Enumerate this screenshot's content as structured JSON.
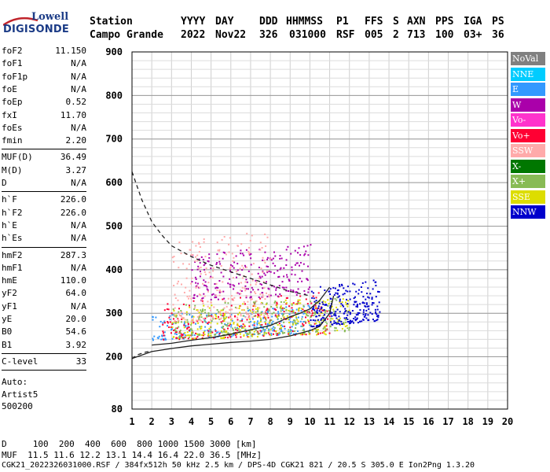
{
  "logo": {
    "line1": "Lowell",
    "line2": "DIGISONDE"
  },
  "header": {
    "labels": [
      {
        "label": "Station",
        "value": "Campo Grande"
      },
      {
        "label": "YYYY",
        "value": "2022"
      },
      {
        "label": "DAY",
        "value": "Nov22"
      },
      {
        "label": "DDD",
        "value": "326"
      },
      {
        "label": "HHMMSS",
        "value": "031000"
      },
      {
        "label": "P1",
        "value": "RSF"
      },
      {
        "label": "FFS",
        "value": "005"
      },
      {
        "label": "S",
        "value": "2"
      },
      {
        "label": "AXN",
        "value": "713"
      },
      {
        "label": "PPS",
        "value": "100"
      },
      {
        "label": "IGA",
        "value": "03+"
      },
      {
        "label": "PS",
        "value": "36"
      }
    ]
  },
  "params": {
    "group1": [
      {
        "label": "foF2",
        "value": "11.150"
      },
      {
        "label": "foF1",
        "value": "N/A"
      },
      {
        "label": "foF1p",
        "value": "N/A"
      },
      {
        "label": "foE",
        "value": "N/A"
      },
      {
        "label": "foEp",
        "value": "0.52"
      },
      {
        "label": "fxI",
        "value": "11.70"
      },
      {
        "label": "foEs",
        "value": "N/A"
      },
      {
        "label": "fmin",
        "value": "2.20"
      }
    ],
    "group2": [
      {
        "label": "MUF(D)",
        "value": "36.49"
      },
      {
        "label": "M(D)",
        "value": "3.27"
      },
      {
        "label": "D",
        "value": "N/A"
      }
    ],
    "group3": [
      {
        "label": "h`F",
        "value": "226.0"
      },
      {
        "label": "h`F2",
        "value": "226.0"
      },
      {
        "label": "h`E",
        "value": "N/A"
      },
      {
        "label": "h`Es",
        "value": "N/A"
      }
    ],
    "group4": [
      {
        "label": "hmF2",
        "value": "287.3"
      },
      {
        "label": "hmF1",
        "value": "N/A"
      },
      {
        "label": "hmE",
        "value": "110.0"
      },
      {
        "label": "yF2",
        "value": "64.0"
      },
      {
        "label": "yF1",
        "value": "N/A"
      },
      {
        "label": "yE",
        "value": "20.0"
      },
      {
        "label": "B0",
        "value": "54.6"
      },
      {
        "label": "B1",
        "value": "3.92"
      }
    ],
    "group5": [
      {
        "label": "C-level",
        "value": "33"
      }
    ],
    "auto": [
      "Auto:",
      "Artist5",
      "500200"
    ]
  },
  "legend": [
    {
      "name": "NoVal",
      "color": "#808080"
    },
    {
      "name": "NNE",
      "color": "#00ccff"
    },
    {
      "name": "E",
      "color": "#3399ff"
    },
    {
      "name": "W",
      "color": "#aa00aa"
    },
    {
      "name": "Vo-",
      "color": "#ff33cc"
    },
    {
      "name": "Vo+",
      "color": "#ff0033"
    },
    {
      "name": "SSW",
      "color": "#ffaaaa"
    },
    {
      "name": "X-",
      "color": "#007700"
    },
    {
      "name": "X+",
      "color": "#88bb55"
    },
    {
      "name": "SSE",
      "color": "#dddd00"
    },
    {
      "name": "NNW",
      "color": "#0000cc"
    }
  ],
  "footer": {
    "line1": "D     100  200  400  600  800 1000 1500 3000 [km]",
    "line2": "MUF  11.5 11.6 12.2 13.1 14.4 16.4 22.0 36.5 [MHz]",
    "line3": "CGK21_2022326031000.RSF / 384fx512h 50 kHz 2.5 km / DPS-4D CGK21 821 / 20.5 S 305.0 E Ion2Png 1.3.20"
  },
  "chart_data": {
    "type": "scatter",
    "xlabel": "",
    "ylabel": "",
    "xlim": [
      1,
      20
    ],
    "ylim": [
      80,
      900
    ],
    "x_ticks": [
      1,
      2,
      3,
      4,
      5,
      6,
      7,
      8,
      9,
      10,
      11,
      12,
      13,
      14,
      15,
      16,
      17,
      18,
      19,
      20
    ],
    "y_ticks": [
      80,
      200,
      300,
      400,
      500,
      600,
      700,
      800,
      900
    ],
    "grid": true,
    "curves": [
      {
        "name": "",
        "style": "dashed",
        "points": [
          [
            1,
            625
          ],
          [
            1.5,
            560
          ],
          [
            2,
            510
          ],
          [
            2.5,
            480
          ],
          [
            3,
            455
          ],
          [
            4,
            430
          ],
          [
            5,
            410
          ],
          [
            6,
            395
          ],
          [
            7,
            380
          ],
          [
            8,
            365
          ],
          [
            9,
            350
          ],
          [
            9.5,
            345
          ],
          [
            10,
            340
          ]
        ]
      },
      {
        "name": "",
        "style": "solid",
        "points": [
          [
            1,
            196
          ],
          [
            2,
            212
          ],
          [
            3,
            219
          ],
          [
            4,
            225
          ],
          [
            5,
            229
          ],
          [
            6,
            233
          ],
          [
            7,
            236
          ],
          [
            8,
            240
          ],
          [
            9,
            248
          ],
          [
            10,
            260
          ],
          [
            10.5,
            270
          ],
          [
            11,
            300
          ],
          [
            11.2,
            340
          ]
        ]
      },
      {
        "name": "",
        "style": "solid",
        "points": [
          [
            2,
            227
          ],
          [
            3,
            231
          ],
          [
            4,
            238
          ],
          [
            5,
            244
          ],
          [
            6,
            252
          ],
          [
            7,
            262
          ],
          [
            8,
            272
          ],
          [
            8.5,
            282
          ],
          [
            9,
            292
          ],
          [
            9.5,
            300
          ],
          [
            10,
            310
          ],
          [
            10.5,
            330
          ],
          [
            11,
            360
          ]
        ]
      },
      {
        "name": "",
        "style": "dashed",
        "points": [
          [
            1,
            196
          ],
          [
            1.3,
            205
          ],
          [
            1.7,
            211
          ],
          [
            2,
            213
          ]
        ]
      }
    ],
    "series_regions": [
      {
        "name": "E",
        "x": [
          2,
          10
        ],
        "y": [
          240,
          300
        ]
      },
      {
        "name": "Vo+",
        "x": [
          2.5,
          11
        ],
        "y": [
          240,
          330
        ]
      },
      {
        "name": "W",
        "x": [
          4,
          10
        ],
        "y": [
          330,
          440
        ]
      },
      {
        "name": "SSE",
        "x": [
          3,
          12
        ],
        "y": [
          240,
          320
        ]
      },
      {
        "name": "X+",
        "x": [
          3,
          12
        ],
        "y": [
          245,
          320
        ]
      },
      {
        "name": "NNW",
        "x": [
          10,
          13.5
        ],
        "y": [
          270,
          360
        ]
      },
      {
        "name": "SSW",
        "x": [
          3,
          8
        ],
        "y": [
          280,
          470
        ]
      }
    ]
  }
}
